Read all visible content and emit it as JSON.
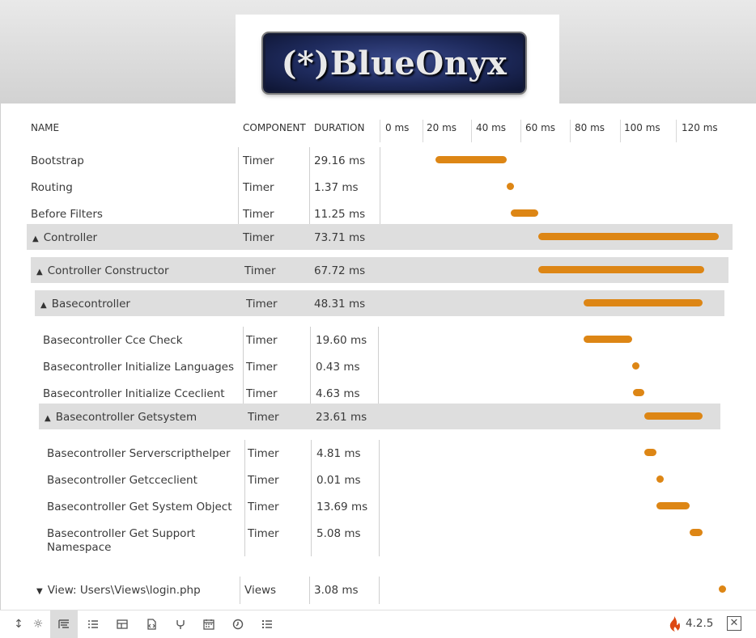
{
  "header_logo": {
    "text": "(*)BlueOnyx"
  },
  "table": {
    "columns": {
      "name": "NAME",
      "component": "COMPONENT",
      "duration": "DURATION"
    },
    "timeline_ticks": [
      "0 ms",
      "20 ms",
      "40 ms",
      "60 ms",
      "80 ms",
      "100 ms",
      "120 ms"
    ],
    "rows": [
      {
        "name": "Bootstrap",
        "component": "Timer",
        "duration": "29.16 ms",
        "start_ms": 20.4,
        "dur_ms": 29.16,
        "expanded": null
      },
      {
        "name": "Routing",
        "component": "Timer",
        "duration": "1.37 ms",
        "start_ms": 49.6,
        "dur_ms": 1.37,
        "expanded": null
      },
      {
        "name": "Before Filters",
        "component": "Timer",
        "duration": "11.25 ms",
        "start_ms": 51.0,
        "dur_ms": 11.25,
        "expanded": null
      },
      {
        "name": "Controller",
        "component": "Timer",
        "duration": "73.71 ms",
        "start_ms": 62.3,
        "dur_ms": 73.71,
        "expanded": true
      },
      {
        "name": "Controller Constructor",
        "component": "Timer",
        "duration": "67.72 ms",
        "start_ms": 62.3,
        "dur_ms": 67.72,
        "expanded": true
      },
      {
        "name": "Basecontroller",
        "component": "Timer",
        "duration": "48.31 ms",
        "start_ms": 81.0,
        "dur_ms": 48.31,
        "expanded": true
      },
      {
        "name": "Basecontroller Cce Check",
        "component": "Timer",
        "duration": "19.60 ms",
        "start_ms": 81.0,
        "dur_ms": 19.6,
        "expanded": null
      },
      {
        "name": "Basecontroller Initialize Languages",
        "component": "Timer",
        "duration": "0.43 ms",
        "start_ms": 100.6,
        "dur_ms": 0.43,
        "expanded": null
      },
      {
        "name": "Basecontroller Initialize Cceclient",
        "component": "Timer",
        "duration": "4.63 ms",
        "start_ms": 101.0,
        "dur_ms": 4.63,
        "expanded": null
      },
      {
        "name": "Basecontroller Getsystem",
        "component": "Timer",
        "duration": "23.61 ms",
        "start_ms": 105.7,
        "dur_ms": 23.61,
        "expanded": true
      },
      {
        "name": "Basecontroller Serverscripthelper",
        "component": "Timer",
        "duration": "4.81 ms",
        "start_ms": 105.7,
        "dur_ms": 4.81,
        "expanded": null
      },
      {
        "name": "Basecontroller Getcceclient",
        "component": "Timer",
        "duration": "0.01 ms",
        "start_ms": 110.5,
        "dur_ms": 0.01,
        "expanded": null
      },
      {
        "name": "Basecontroller Get System Object",
        "component": "Timer",
        "duration": "13.69 ms",
        "start_ms": 110.5,
        "dur_ms": 13.69,
        "expanded": null
      },
      {
        "name": "Basecontroller Get Support Namespace",
        "component": "Timer",
        "duration": "5.08 ms",
        "start_ms": 124.2,
        "dur_ms": 5.08,
        "expanded": null
      },
      {
        "name": "View: Users\\Views\\login.php",
        "component": "Views",
        "duration": "3.08 ms",
        "start_ms": 136.0,
        "dur_ms": 3.08,
        "expanded": false
      }
    ]
  },
  "toolbar": {
    "icons": [
      "resize-icon",
      "settings-icon",
      "timeline-icon",
      "database-list-icon",
      "layout-icon",
      "files-icon",
      "routes-icon",
      "calendar-icon",
      "history-icon",
      "logs-icon"
    ],
    "version": "4.2.5"
  },
  "colors": {
    "bar": "#dd8615",
    "group_bg": "#dedede",
    "framework_logo": "#dd4814"
  }
}
